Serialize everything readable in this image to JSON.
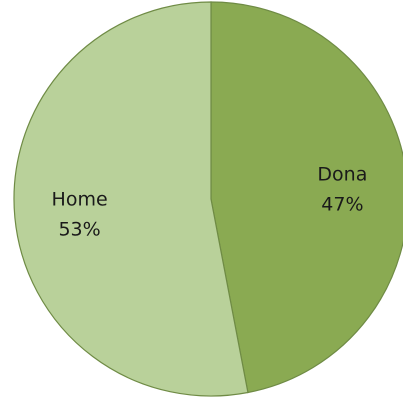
{
  "chart_data": {
    "type": "pie",
    "title": "",
    "start_angle_deg": 0,
    "direction": "clockwise",
    "slices": [
      {
        "label": "Dona",
        "value": 47,
        "value_label": "47%",
        "color": "#8aaa52"
      },
      {
        "label": "Home",
        "value": 53,
        "value_label": "53%",
        "color": "#b9d19a"
      }
    ],
    "edge_color": "#6f8b45"
  }
}
